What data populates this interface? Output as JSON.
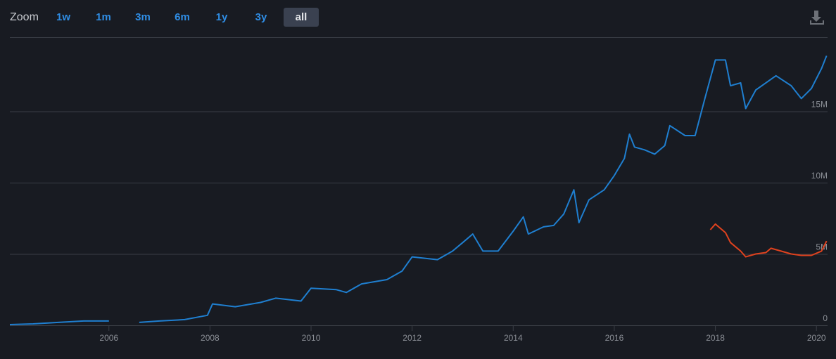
{
  "zoom": {
    "label": "Zoom",
    "buttons": [
      "1w",
      "1m",
      "3m",
      "6m",
      "1y",
      "3y",
      "all"
    ],
    "selected": 6
  },
  "chart_data": {
    "type": "line",
    "xlim": [
      2004.04,
      2020.22
    ],
    "xticks": [
      2006,
      2008,
      2010,
      2012,
      2014,
      2016,
      2018,
      2020
    ],
    "ylim": [
      0,
      20100000
    ],
    "yticks": [
      {
        "value": 0,
        "label": "0"
      },
      {
        "value": 5000000,
        "label": "5M"
      },
      {
        "value": 10000000,
        "label": "10M"
      },
      {
        "value": 15000000,
        "label": "15M"
      }
    ],
    "grid": true,
    "series": [
      {
        "color": "#1f7fd0",
        "x": [
          2004.04,
          2004.5,
          2005,
          2005.5,
          2006,
          2006.3,
          2006.6,
          2007,
          2007.5,
          2007.95,
          2008.05,
          2008.5,
          2009,
          2009.3,
          2009.8,
          2010,
          2010.5,
          2010.7,
          2011,
          2011.5,
          2011.8,
          2012,
          2012.5,
          2012.8,
          2013,
          2013.2,
          2013.4,
          2013.7,
          2014,
          2014.2,
          2014.3,
          2014.6,
          2014.8,
          2015,
          2015.2,
          2015.3,
          2015.5,
          2015.8,
          2016,
          2016.2,
          2016.3,
          2016.4,
          2016.6,
          2016.8,
          2017,
          2017.1,
          2017.4,
          2017.6,
          2017.8,
          2018,
          2018.2,
          2018.3,
          2018.5,
          2018.6,
          2018.8,
          2019,
          2019.2,
          2019.5,
          2019.7,
          2019.9,
          2020.1,
          2020.2
        ],
        "values": [
          50000,
          100000,
          200000,
          300000,
          300000,
          null,
          200000,
          300000,
          400000,
          700000,
          1500000,
          1300000,
          1600000,
          1900000,
          1700000,
          2600000,
          2500000,
          2300000,
          2900000,
          3200000,
          3800000,
          4800000,
          4600000,
          5200000,
          5800000,
          6400000,
          5200000,
          5200000,
          6600000,
          7600000,
          6400000,
          6900000,
          7000000,
          7800000,
          9500000,
          7200000,
          8800000,
          9500000,
          10500000,
          11700000,
          13400000,
          12500000,
          12300000,
          12000000,
          12600000,
          14000000,
          13300000,
          13300000,
          16000000,
          18600000,
          18600000,
          16800000,
          17000000,
          15200000,
          16500000,
          17000000,
          17500000,
          16800000,
          15900000,
          16600000,
          18000000,
          18900000
        ]
      },
      {
        "color": "#e0421e",
        "x": [
          2017.9,
          2018,
          2018.1,
          2018.2,
          2018.3,
          2018.5,
          2018.6,
          2018.8,
          2019,
          2019.1,
          2019.3,
          2019.5,
          2019.7,
          2019.9,
          2020.1,
          2020.2
        ],
        "values": [
          6700000,
          7100000,
          6800000,
          6500000,
          5800000,
          5200000,
          4800000,
          5000000,
          5100000,
          5400000,
          5200000,
          5000000,
          4900000,
          4900000,
          5200000,
          5900000
        ]
      }
    ]
  }
}
